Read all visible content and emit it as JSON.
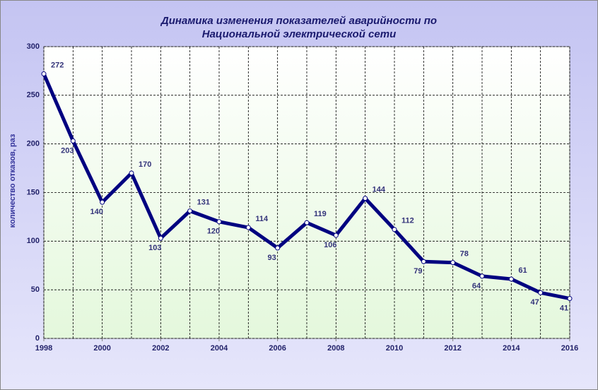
{
  "chart_data": {
    "type": "line",
    "title": [
      "Динамика изменения показателей аварийности по",
      "Национальной электрической сети"
    ],
    "y_label": "количество отказов, раз",
    "x": [
      1998,
      1999,
      2000,
      2001,
      2002,
      2003,
      2004,
      2005,
      2006,
      2007,
      2008,
      2009,
      2010,
      2011,
      2012,
      2013,
      2014,
      2015,
      2016
    ],
    "series": [
      {
        "name": "количество отказов",
        "color": "#000080",
        "values": [
          272,
          203,
          140,
          170,
          103,
          131,
          120,
          114,
          93,
          119,
          106,
          144,
          112,
          79,
          78,
          64,
          61,
          47,
          41
        ]
      }
    ],
    "xlim": [
      1998,
      2016
    ],
    "xticks": [
      1998,
      2000,
      2002,
      2004,
      2006,
      2008,
      2010,
      2012,
      2014,
      2016
    ],
    "ylim": [
      0,
      300
    ],
    "yticks": [
      0,
      50,
      100,
      150,
      200,
      250,
      300
    ],
    "grid": true
  }
}
